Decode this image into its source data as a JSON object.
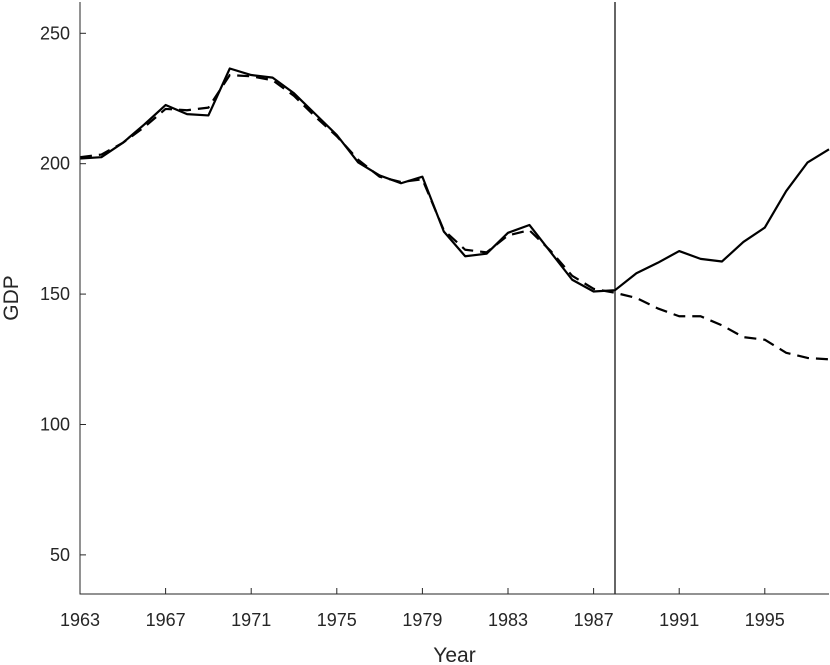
{
  "chart_data": {
    "type": "line",
    "title": "",
    "xlabel": "Year",
    "ylabel": "GDP",
    "xlim": [
      1963,
      1998
    ],
    "ylim": [
      35,
      262
    ],
    "xticks": [
      "1963",
      "1967",
      "1971",
      "1975",
      "1979",
      "1983",
      "1987",
      "1991",
      "1995"
    ],
    "yticks": [
      "50",
      "100",
      "150",
      "200",
      "250"
    ],
    "grid": false,
    "vertical_line_x": 1988,
    "series": [
      {
        "style": "solid",
        "color": "#000000",
        "x": [
          1963,
          1964,
          1965,
          1966,
          1967,
          1968,
          1969,
          1970,
          1971,
          1972,
          1973,
          1974,
          1975,
          1976,
          1977,
          1978,
          1979,
          1980,
          1981,
          1982,
          1983,
          1984,
          1985,
          1986,
          1987,
          1988,
          1989,
          1990,
          1991,
          1992,
          1993,
          1994,
          1995,
          1996,
          1997,
          1998
        ],
        "values": [
          202,
          202.5,
          208,
          215,
          222.5,
          219,
          218.5,
          236.5,
          234,
          233,
          227,
          219,
          211,
          200.5,
          195.5,
          192.5,
          195,
          174,
          164.5,
          165.5,
          173.5,
          176.5,
          166,
          155.5,
          151,
          151.5,
          158,
          162,
          166.5,
          163.5,
          162.5,
          170,
          175.5,
          189.5,
          200.5,
          205.5
        ]
      },
      {
        "style": "dashed",
        "color": "#000000",
        "x": [
          1963,
          1964,
          1965,
          1966,
          1967,
          1968,
          1969,
          1970,
          1971,
          1972,
          1973,
          1974,
          1975,
          1976,
          1977,
          1978,
          1979,
          1980,
          1981,
          1982,
          1983,
          1984,
          1985,
          1986,
          1987,
          1988,
          1989,
          1990,
          1991,
          1992,
          1993,
          1994,
          1995,
          1996,
          1997,
          1998
        ],
        "values": [
          202.5,
          203.5,
          208,
          214,
          221,
          220.5,
          221.5,
          234,
          233.5,
          232,
          226,
          218,
          210.5,
          201.5,
          195,
          193,
          194,
          174.5,
          167,
          166,
          172.5,
          174.5,
          166.5,
          157,
          152,
          150.5,
          148.5,
          144.5,
          141.5,
          141.5,
          138,
          133.5,
          132.5,
          127.5,
          125.5,
          125
        ]
      }
    ]
  }
}
